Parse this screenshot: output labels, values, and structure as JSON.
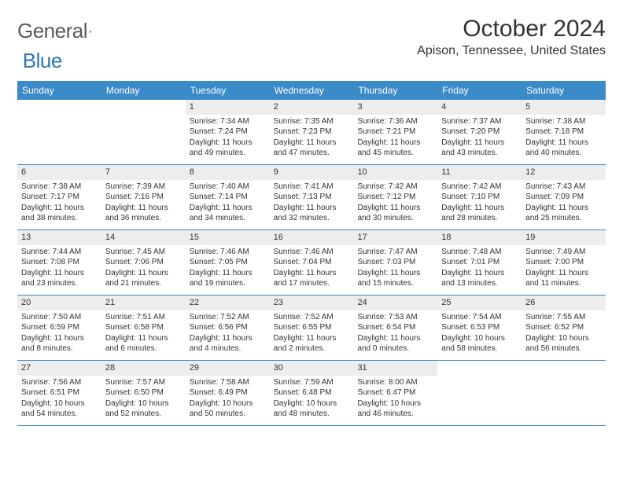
{
  "brand": {
    "part1": "General",
    "part2": "Blue"
  },
  "title": "October 2024",
  "location": "Apison, Tennessee, United States",
  "colors": {
    "header_bg": "#3b8bc9",
    "daynum_bg": "#ededed",
    "row_border": "#3b8bc9",
    "text": "#333333",
    "logo_gray": "#58595b",
    "logo_blue": "#2f75b5",
    "page_bg": "#ffffff"
  },
  "fonts": {
    "weekday_size": 12,
    "title_size": 30,
    "location_size": 16,
    "cell_size": 10
  },
  "weekdays": [
    "Sunday",
    "Monday",
    "Tuesday",
    "Wednesday",
    "Thursday",
    "Friday",
    "Saturday"
  ],
  "weeks": [
    [
      {
        "n": "",
        "sr": "",
        "ss": "",
        "dl": ""
      },
      {
        "n": "",
        "sr": "",
        "ss": "",
        "dl": ""
      },
      {
        "n": "1",
        "sr": "Sunrise: 7:34 AM",
        "ss": "Sunset: 7:24 PM",
        "dl": "Daylight: 11 hours and 49 minutes."
      },
      {
        "n": "2",
        "sr": "Sunrise: 7:35 AM",
        "ss": "Sunset: 7:23 PM",
        "dl": "Daylight: 11 hours and 47 minutes."
      },
      {
        "n": "3",
        "sr": "Sunrise: 7:36 AM",
        "ss": "Sunset: 7:21 PM",
        "dl": "Daylight: 11 hours and 45 minutes."
      },
      {
        "n": "4",
        "sr": "Sunrise: 7:37 AM",
        "ss": "Sunset: 7:20 PM",
        "dl": "Daylight: 11 hours and 43 minutes."
      },
      {
        "n": "5",
        "sr": "Sunrise: 7:38 AM",
        "ss": "Sunset: 7:18 PM",
        "dl": "Daylight: 11 hours and 40 minutes."
      }
    ],
    [
      {
        "n": "6",
        "sr": "Sunrise: 7:38 AM",
        "ss": "Sunset: 7:17 PM",
        "dl": "Daylight: 11 hours and 38 minutes."
      },
      {
        "n": "7",
        "sr": "Sunrise: 7:39 AM",
        "ss": "Sunset: 7:16 PM",
        "dl": "Daylight: 11 hours and 36 minutes."
      },
      {
        "n": "8",
        "sr": "Sunrise: 7:40 AM",
        "ss": "Sunset: 7:14 PM",
        "dl": "Daylight: 11 hours and 34 minutes."
      },
      {
        "n": "9",
        "sr": "Sunrise: 7:41 AM",
        "ss": "Sunset: 7:13 PM",
        "dl": "Daylight: 11 hours and 32 minutes."
      },
      {
        "n": "10",
        "sr": "Sunrise: 7:42 AM",
        "ss": "Sunset: 7:12 PM",
        "dl": "Daylight: 11 hours and 30 minutes."
      },
      {
        "n": "11",
        "sr": "Sunrise: 7:42 AM",
        "ss": "Sunset: 7:10 PM",
        "dl": "Daylight: 11 hours and 28 minutes."
      },
      {
        "n": "12",
        "sr": "Sunrise: 7:43 AM",
        "ss": "Sunset: 7:09 PM",
        "dl": "Daylight: 11 hours and 25 minutes."
      }
    ],
    [
      {
        "n": "13",
        "sr": "Sunrise: 7:44 AM",
        "ss": "Sunset: 7:08 PM",
        "dl": "Daylight: 11 hours and 23 minutes."
      },
      {
        "n": "14",
        "sr": "Sunrise: 7:45 AM",
        "ss": "Sunset: 7:06 PM",
        "dl": "Daylight: 11 hours and 21 minutes."
      },
      {
        "n": "15",
        "sr": "Sunrise: 7:46 AM",
        "ss": "Sunset: 7:05 PM",
        "dl": "Daylight: 11 hours and 19 minutes."
      },
      {
        "n": "16",
        "sr": "Sunrise: 7:46 AM",
        "ss": "Sunset: 7:04 PM",
        "dl": "Daylight: 11 hours and 17 minutes."
      },
      {
        "n": "17",
        "sr": "Sunrise: 7:47 AM",
        "ss": "Sunset: 7:03 PM",
        "dl": "Daylight: 11 hours and 15 minutes."
      },
      {
        "n": "18",
        "sr": "Sunrise: 7:48 AM",
        "ss": "Sunset: 7:01 PM",
        "dl": "Daylight: 11 hours and 13 minutes."
      },
      {
        "n": "19",
        "sr": "Sunrise: 7:49 AM",
        "ss": "Sunset: 7:00 PM",
        "dl": "Daylight: 11 hours and 11 minutes."
      }
    ],
    [
      {
        "n": "20",
        "sr": "Sunrise: 7:50 AM",
        "ss": "Sunset: 6:59 PM",
        "dl": "Daylight: 11 hours and 8 minutes."
      },
      {
        "n": "21",
        "sr": "Sunrise: 7:51 AM",
        "ss": "Sunset: 6:58 PM",
        "dl": "Daylight: 11 hours and 6 minutes."
      },
      {
        "n": "22",
        "sr": "Sunrise: 7:52 AM",
        "ss": "Sunset: 6:56 PM",
        "dl": "Daylight: 11 hours and 4 minutes."
      },
      {
        "n": "23",
        "sr": "Sunrise: 7:52 AM",
        "ss": "Sunset: 6:55 PM",
        "dl": "Daylight: 11 hours and 2 minutes."
      },
      {
        "n": "24",
        "sr": "Sunrise: 7:53 AM",
        "ss": "Sunset: 6:54 PM",
        "dl": "Daylight: 11 hours and 0 minutes."
      },
      {
        "n": "25",
        "sr": "Sunrise: 7:54 AM",
        "ss": "Sunset: 6:53 PM",
        "dl": "Daylight: 10 hours and 58 minutes."
      },
      {
        "n": "26",
        "sr": "Sunrise: 7:55 AM",
        "ss": "Sunset: 6:52 PM",
        "dl": "Daylight: 10 hours and 56 minutes."
      }
    ],
    [
      {
        "n": "27",
        "sr": "Sunrise: 7:56 AM",
        "ss": "Sunset: 6:51 PM",
        "dl": "Daylight: 10 hours and 54 minutes."
      },
      {
        "n": "28",
        "sr": "Sunrise: 7:57 AM",
        "ss": "Sunset: 6:50 PM",
        "dl": "Daylight: 10 hours and 52 minutes."
      },
      {
        "n": "29",
        "sr": "Sunrise: 7:58 AM",
        "ss": "Sunset: 6:49 PM",
        "dl": "Daylight: 10 hours and 50 minutes."
      },
      {
        "n": "30",
        "sr": "Sunrise: 7:59 AM",
        "ss": "Sunset: 6:48 PM",
        "dl": "Daylight: 10 hours and 48 minutes."
      },
      {
        "n": "31",
        "sr": "Sunrise: 8:00 AM",
        "ss": "Sunset: 6:47 PM",
        "dl": "Daylight: 10 hours and 46 minutes."
      },
      {
        "n": "",
        "sr": "",
        "ss": "",
        "dl": ""
      },
      {
        "n": "",
        "sr": "",
        "ss": "",
        "dl": ""
      }
    ]
  ]
}
